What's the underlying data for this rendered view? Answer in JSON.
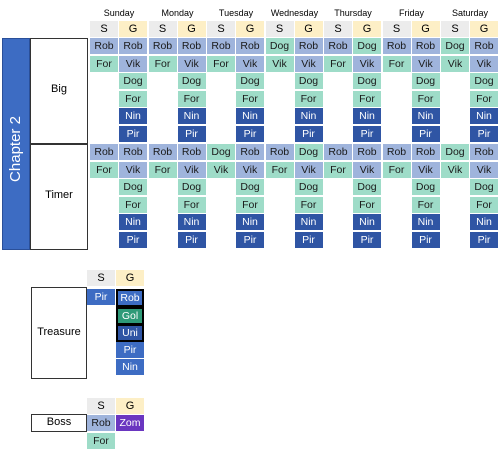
{
  "days": [
    "Sunday",
    "Monday",
    "Tuesday",
    "Wednesday",
    "Thursday",
    "Friday",
    "Saturday"
  ],
  "col_headers": {
    "s": "S",
    "g": "G"
  },
  "chapter_label": "Chapter 2",
  "sections": [
    {
      "name": "Big",
      "rows": [
        {
          "s": [
            "Rob",
            "Rob",
            "Rob",
            "Dog",
            "Rob",
            "Rob",
            "Dog"
          ],
          "g": [
            "Rob",
            "Rob",
            "Rob",
            "Rob",
            "Dog",
            "Rob",
            "Rob"
          ]
        },
        {
          "s": [
            "For",
            "For",
            "For",
            "Vik",
            "For",
            "For",
            "Vik"
          ],
          "g": [
            "Vik",
            "Vik",
            "Vik",
            "Vik",
            "Vik",
            "Vik",
            "Vik"
          ]
        },
        {
          "s": [
            "",
            "",
            "",
            "",
            "",
            "",
            ""
          ],
          "g": [
            "Dog",
            "Dog",
            "Dog",
            "Dog",
            "Dog",
            "Dog",
            "Dog"
          ]
        },
        {
          "s": [
            "",
            "",
            "",
            "",
            "",
            "",
            ""
          ],
          "g": [
            "For",
            "For",
            "For",
            "For",
            "For",
            "For",
            "For"
          ]
        },
        {
          "s": [
            "",
            "",
            "",
            "",
            "",
            "",
            ""
          ],
          "g": [
            "Nin",
            "Nin",
            "Nin",
            "Nin",
            "Nin",
            "Nin",
            "Nin"
          ]
        },
        {
          "s": [
            "",
            "",
            "",
            "",
            "",
            "",
            ""
          ],
          "g": [
            "Pir",
            "Pir",
            "Pir",
            "Pir",
            "Pir",
            "Pir",
            "Pir"
          ]
        }
      ]
    },
    {
      "name": "Timer",
      "rows": [
        {
          "s": [
            "Rob",
            "Rob",
            "Dog",
            "Rob",
            "Rob",
            "Rob",
            "Dog"
          ],
          "g": [
            "Rob",
            "Rob",
            "Rob",
            "Dog",
            "Rob",
            "Rob",
            "Rob"
          ]
        },
        {
          "s": [
            "For",
            "For",
            "Vik",
            "For",
            "For",
            "For",
            "Vik"
          ],
          "g": [
            "Vik",
            "Vik",
            "Vik",
            "Vik",
            "Vik",
            "Vik",
            "Vik"
          ]
        },
        {
          "s": [
            "",
            "",
            "",
            "",
            "",
            "",
            ""
          ],
          "g": [
            "Dog",
            "Dog",
            "Dog",
            "Dog",
            "Dog",
            "Dog",
            "Dog"
          ]
        },
        {
          "s": [
            "",
            "",
            "",
            "",
            "",
            "",
            ""
          ],
          "g": [
            "For",
            "For",
            "For",
            "For",
            "For",
            "For",
            "For"
          ]
        },
        {
          "s": [
            "",
            "",
            "",
            "",
            "",
            "",
            ""
          ],
          "g": [
            "Nin",
            "Nin",
            "Nin",
            "Nin",
            "Nin",
            "Nin",
            "Nin"
          ]
        },
        {
          "s": [
            "",
            "",
            "",
            "",
            "",
            "",
            ""
          ],
          "g": [
            "Pir",
            "Pir",
            "Pir",
            "Pir",
            "Pir",
            "Pir",
            "Pir"
          ]
        }
      ]
    }
  ],
  "treasure": {
    "label": "Treasure",
    "s": [
      "Pir"
    ],
    "g": [
      "Rob",
      "Gol",
      "Uni",
      "Pir",
      "Nin"
    ],
    "highlighted": [
      "Rob",
      "Gol",
      "Uni"
    ]
  },
  "boss": {
    "label": "Boss",
    "s": [
      "Rob",
      "For"
    ],
    "g": [
      "Zom"
    ]
  },
  "colors": {
    "light_blue": "#9fb4dc",
    "blue": "#3d6cc3",
    "teal": "#9edcc8",
    "green": "#2e9a78",
    "navy": "#2f55a4",
    "purple": "#6a36c0",
    "chapter_bg": "#3d6cc3",
    "s_header_bg": "#ececec",
    "g_header_bg": "#fdefc6"
  }
}
